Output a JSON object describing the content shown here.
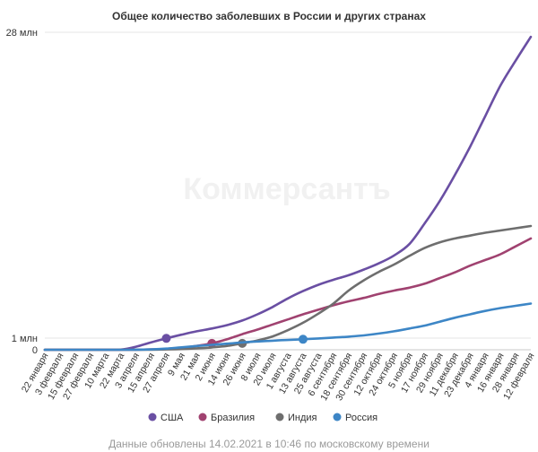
{
  "chart_data": {
    "type": "line",
    "title": "Общее количество заболевших в России и других странах",
    "watermark": "Коммерсантъ",
    "footer": "Данные обновлены 14.02.2021 в 10:46 по московскому времени",
    "y_ticks": [
      {
        "value": 0,
        "label": "0"
      },
      {
        "value": 1,
        "label": "1 млн"
      },
      {
        "value": 28,
        "label": "28 млн"
      }
    ],
    "ylim": [
      0,
      28
    ],
    "y_breakpoints": [
      [
        0,
        0
      ],
      [
        1,
        1
      ],
      [
        28,
        28
      ]
    ],
    "x_tick_labels": [
      "22 января",
      "3 февраля",
      "15 февраля",
      "27 февраля",
      "10 марта",
      "22 марта",
      "3 апреля",
      "15 апреля",
      "27 апреля",
      "9 мая",
      "21 мая",
      "2 июня",
      "14 июня",
      "26 июня",
      "8 июля",
      "20 июля",
      "1 августа",
      "13 августа",
      "25 августа",
      "6 сентября",
      "18 сентября",
      "30 сентября",
      "12 октября",
      "24 октября",
      "5 ноября",
      "17 ноября",
      "29 ноября",
      "11 декабря",
      "23 декабря",
      "4 января",
      "16 января",
      "28 января",
      "12 февраля"
    ],
    "grid": false,
    "legend_position": "bottom",
    "series": [
      {
        "name": "США",
        "color": "#6a4fa3",
        "marker_index": 8,
        "values": [
          0,
          0,
          0,
          0,
          0,
          0.013,
          0.26,
          0.64,
          0.98,
          1.3,
          1.6,
          1.85,
          2.15,
          2.55,
          3.1,
          3.75,
          4.5,
          5.15,
          5.7,
          6.15,
          6.55,
          7.05,
          7.6,
          8.3,
          9.3,
          11.1,
          13.1,
          15.4,
          17.9,
          20.6,
          23.3,
          25.5,
          27.6
        ]
      },
      {
        "name": "Бразилия",
        "color": "#a04270",
        "marker_index": 11,
        "values": [
          0,
          0,
          0,
          0,
          0,
          0,
          0.01,
          0.03,
          0.06,
          0.15,
          0.33,
          0.55,
          0.9,
          1.35,
          1.75,
          2.2,
          2.65,
          3.1,
          3.5,
          3.9,
          4.25,
          4.55,
          4.9,
          5.2,
          5.45,
          5.8,
          6.3,
          6.8,
          7.4,
          7.9,
          8.4,
          9.1,
          9.8
        ]
      },
      {
        "name": "Индия",
        "color": "#6e6e6e",
        "marker_index": 13,
        "values": [
          0,
          0,
          0,
          0,
          0,
          0,
          0,
          0.005,
          0.03,
          0.06,
          0.12,
          0.2,
          0.33,
          0.55,
          0.8,
          1.15,
          1.7,
          2.35,
          3.15,
          4.05,
          5.2,
          6.1,
          6.85,
          7.5,
          8.25,
          8.95,
          9.45,
          9.8,
          10.05,
          10.3,
          10.5,
          10.7,
          10.9
        ]
      },
      {
        "name": "Россия",
        "color": "#3d86c6",
        "marker_index": 17,
        "values": [
          0,
          0,
          0,
          0,
          0,
          0,
          0.004,
          0.03,
          0.1,
          0.21,
          0.32,
          0.42,
          0.52,
          0.63,
          0.71,
          0.78,
          0.84,
          0.9,
          0.97,
          1.05,
          1.13,
          1.24,
          1.4,
          1.6,
          1.85,
          2.1,
          2.45,
          2.8,
          3.1,
          3.4,
          3.65,
          3.85,
          4.05
        ]
      }
    ]
  }
}
